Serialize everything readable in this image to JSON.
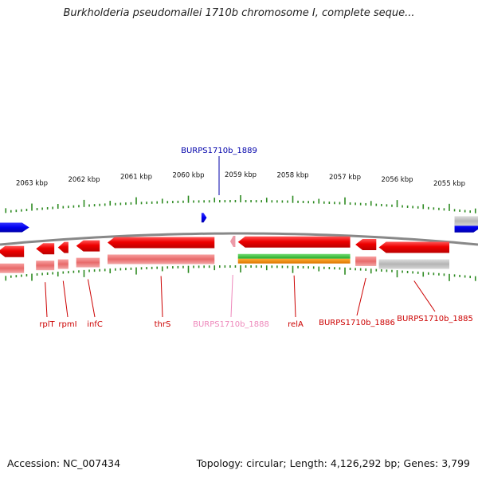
{
  "title": "Burkholderia pseudomallei 1710b chromosome I, complete seque...",
  "footer": {
    "accession": "Accession: NC_007434",
    "summary": "Topology: circular; Length: 4,126,292 bp; Genes: 3,799"
  },
  "colors": {
    "gene_red": "#ee0000",
    "gene_pink": "#ec9aa8",
    "gene_blue": "#0000ee",
    "label_red": "#cc0000",
    "label_blue": "#0000aa",
    "label_pink": "#ee88bb",
    "tick_green": "#2e8b22",
    "backbone_gray": "#888888",
    "track_green": "#33bb33",
    "track_orange": "#ee8800",
    "track_gray": "#bbbbbb"
  },
  "ruler": {
    "unit": "kbp",
    "ticks": [
      {
        "pos": 2063,
        "label": "2063 kbp"
      },
      {
        "pos": 2062,
        "label": "2062 kbp"
      },
      {
        "pos": 2061,
        "label": "2061 kbp"
      },
      {
        "pos": 2060,
        "label": "2060 kbp"
      },
      {
        "pos": 2059,
        "label": "2059 kbp"
      },
      {
        "pos": 2058,
        "label": "2058 kbp"
      },
      {
        "pos": 2057,
        "label": "2057 kbp"
      },
      {
        "pos": 2056,
        "label": "2056 kbp"
      },
      {
        "pos": 2055,
        "label": "2055 kbp"
      }
    ]
  },
  "genes": [
    {
      "name": "BURPS1710b_1889",
      "start": 2059.75,
      "end": 2059.65,
      "strand": "plus",
      "color": "blue",
      "labeled": true
    },
    {
      "name": "rplT",
      "start": 2062.92,
      "end": 2062.57,
      "strand": "minus",
      "color": "red",
      "labeled": true
    },
    {
      "name": "rpmI",
      "start": 2062.5,
      "end": 2062.3,
      "strand": "minus",
      "color": "red",
      "labeled": true
    },
    {
      "name": "infC",
      "start": 2062.15,
      "end": 2061.7,
      "strand": "minus",
      "color": "red",
      "labeled": true
    },
    {
      "name": "thrS",
      "start": 2061.55,
      "end": 2059.5,
      "strand": "minus",
      "color": "red",
      "labeled": true
    },
    {
      "name": "BURPS1710b_1888",
      "start": 2059.2,
      "end": 2059.1,
      "strand": "minus",
      "color": "pink",
      "labeled": true
    },
    {
      "name": "relA",
      "start": 2059.05,
      "end": 2056.9,
      "strand": "minus",
      "color": "red",
      "labeled": true
    },
    {
      "name": "BURPS1710b_1886",
      "start": 2056.8,
      "end": 2056.4,
      "strand": "minus",
      "color": "red",
      "labeled": true
    },
    {
      "name": "BURPS1710b_1885",
      "start": 2056.35,
      "end": 2055.0,
      "strand": "minus",
      "color": "red",
      "labeled": true
    },
    {
      "name": "",
      "start": 2063.65,
      "end": 2063.05,
      "strand": "plus",
      "color": "blue",
      "labeled": false
    },
    {
      "name": "",
      "start": 2054.9,
      "end": 2054.4,
      "strand": "plus",
      "color": "blue",
      "labeled": false
    },
    {
      "name": "",
      "start": 2063.65,
      "end": 2063.15,
      "strand": "minus",
      "color": "red",
      "labeled": false
    }
  ]
}
